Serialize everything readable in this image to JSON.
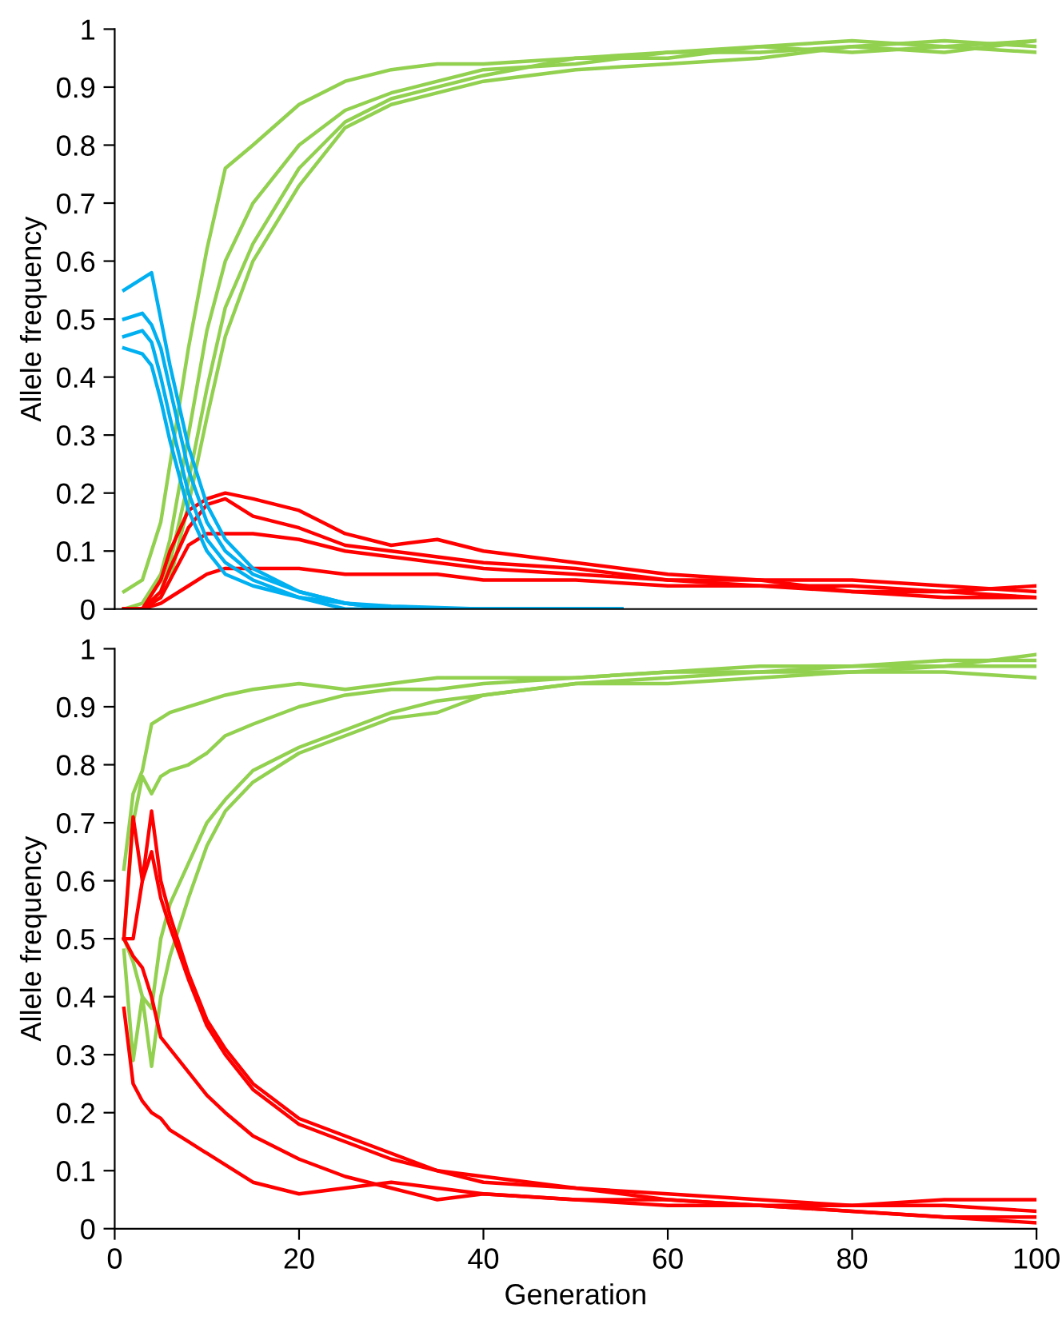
{
  "chart_data": [
    {
      "type": "line",
      "ylabel": "Allele frequency",
      "xlim": [
        0,
        100
      ],
      "ylim": [
        0,
        1
      ],
      "yticks": [
        0,
        0.1,
        0.2,
        0.3,
        0.4,
        0.5,
        0.6,
        0.7,
        0.8,
        0.9,
        1
      ],
      "tick_labels": "y",
      "grid": false,
      "marker": "none",
      "line_style": "solid",
      "x": [
        1,
        3,
        5,
        6,
        8,
        10,
        12,
        15,
        20,
        25,
        30,
        35,
        40,
        50,
        60,
        70,
        80,
        90,
        100
      ],
      "series": [
        {
          "color": "#92d050",
          "values": [
            0.03,
            0.05,
            0.15,
            0.25,
            0.45,
            0.62,
            0.76,
            0.8,
            0.87,
            0.91,
            0.93,
            0.94,
            0.94,
            0.95,
            0.96,
            0.97,
            0.98,
            0.97,
            0.98
          ]
        },
        {
          "color": "#92d050",
          "values": [
            0.0,
            0.01,
            0.06,
            0.12,
            0.3,
            0.48,
            0.6,
            0.7,
            0.8,
            0.86,
            0.89,
            0.91,
            0.93,
            0.94,
            0.96,
            0.96,
            0.97,
            0.98,
            0.97
          ]
        },
        {
          "color": "#92d050",
          "values": [
            0.0,
            0.0,
            0.03,
            0.08,
            0.22,
            0.38,
            0.52,
            0.63,
            0.76,
            0.84,
            0.88,
            0.9,
            0.92,
            0.95,
            0.95,
            0.97,
            0.96,
            0.97,
            0.96
          ]
        },
        {
          "color": "#92d050",
          "values": [
            0.0,
            0.0,
            0.02,
            0.05,
            0.18,
            0.33,
            0.47,
            0.6,
            0.73,
            0.83,
            0.87,
            0.89,
            0.91,
            0.93,
            0.94,
            0.95,
            0.97,
            0.96,
            0.98
          ]
        },
        {
          "color": "#ff0000",
          "values": [
            0.0,
            0.0,
            0.05,
            0.1,
            0.17,
            0.19,
            0.2,
            0.19,
            0.17,
            0.13,
            0.11,
            0.12,
            0.1,
            0.08,
            0.06,
            0.05,
            0.05,
            0.04,
            0.03
          ]
        },
        {
          "color": "#ff0000",
          "values": [
            0.0,
            0.0,
            0.03,
            0.07,
            0.14,
            0.18,
            0.19,
            0.16,
            0.14,
            0.11,
            0.1,
            0.09,
            0.08,
            0.07,
            0.05,
            0.04,
            0.04,
            0.03,
            0.02
          ]
        },
        {
          "color": "#ff0000",
          "values": [
            0.0,
            0.0,
            0.02,
            0.05,
            0.11,
            0.13,
            0.13,
            0.13,
            0.12,
            0.1,
            0.09,
            0.08,
            0.07,
            0.06,
            0.05,
            0.05,
            0.03,
            0.03,
            0.04
          ]
        },
        {
          "color": "#ff0000",
          "values": [
            0.0,
            0.0,
            0.01,
            0.02,
            0.04,
            0.06,
            0.07,
            0.07,
            0.07,
            0.06,
            0.06,
            0.06,
            0.05,
            0.05,
            0.04,
            0.04,
            0.03,
            0.02,
            0.02
          ]
        },
        {
          "color": "#00b0f0",
          "x": [
            1,
            3,
            4,
            5,
            6,
            8,
            10,
            12,
            15,
            20,
            25,
            30,
            40,
            55
          ],
          "values": [
            0.55,
            0.57,
            0.58,
            0.5,
            0.42,
            0.28,
            0.18,
            0.12,
            0.07,
            0.03,
            0.01,
            0.005,
            0.0,
            0.0
          ]
        },
        {
          "color": "#00b0f0",
          "x": [
            1,
            3,
            4,
            5,
            6,
            8,
            10,
            12,
            15,
            20,
            25,
            30,
            40,
            55
          ],
          "values": [
            0.5,
            0.51,
            0.49,
            0.45,
            0.38,
            0.24,
            0.15,
            0.1,
            0.06,
            0.03,
            0.01,
            0.0,
            0.0,
            0.0
          ]
        },
        {
          "color": "#00b0f0",
          "x": [
            1,
            3,
            4,
            5,
            6,
            8,
            10,
            12,
            15,
            20,
            25,
            30,
            40,
            55
          ],
          "values": [
            0.47,
            0.48,
            0.46,
            0.4,
            0.33,
            0.2,
            0.12,
            0.08,
            0.05,
            0.02,
            0.01,
            0.0,
            0.0,
            0.0
          ]
        },
        {
          "color": "#00b0f0",
          "x": [
            1,
            3,
            4,
            5,
            6,
            8,
            10,
            12,
            15,
            20,
            25,
            30,
            40,
            55
          ],
          "values": [
            0.45,
            0.44,
            0.42,
            0.36,
            0.29,
            0.17,
            0.1,
            0.06,
            0.04,
            0.02,
            0.0,
            0.0,
            0.0,
            0.0
          ]
        }
      ]
    },
    {
      "type": "line",
      "xlabel": "Generation",
      "ylabel": "Allele frequency",
      "xlim": [
        0,
        100
      ],
      "ylim": [
        0,
        1
      ],
      "xticks": [
        0,
        20,
        40,
        60,
        80,
        100
      ],
      "yticks": [
        0,
        0.1,
        0.2,
        0.3,
        0.4,
        0.5,
        0.6,
        0.7,
        0.8,
        0.9,
        1
      ],
      "grid": false,
      "marker": "none",
      "line_style": "solid",
      "x": [
        1,
        2,
        3,
        4,
        5,
        6,
        8,
        10,
        12,
        15,
        20,
        25,
        30,
        35,
        40,
        50,
        60,
        70,
        80,
        90,
        100
      ],
      "series": [
        {
          "color": "#92d050",
          "values": [
            0.62,
            0.75,
            0.79,
            0.87,
            0.88,
            0.89,
            0.9,
            0.91,
            0.92,
            0.93,
            0.94,
            0.93,
            0.94,
            0.95,
            0.95,
            0.95,
            0.96,
            0.97,
            0.97,
            0.98,
            0.98
          ]
        },
        {
          "color": "#92d050",
          "values": [
            0.5,
            0.7,
            0.78,
            0.75,
            0.78,
            0.79,
            0.8,
            0.82,
            0.85,
            0.87,
            0.9,
            0.92,
            0.93,
            0.93,
            0.94,
            0.95,
            0.96,
            0.96,
            0.97,
            0.97,
            0.99
          ]
        },
        {
          "color": "#92d050",
          "values": [
            0.5,
            0.46,
            0.4,
            0.38,
            0.5,
            0.56,
            0.63,
            0.7,
            0.74,
            0.79,
            0.83,
            0.86,
            0.89,
            0.91,
            0.92,
            0.94,
            0.95,
            0.96,
            0.96,
            0.97,
            0.97
          ]
        },
        {
          "color": "#92d050",
          "values": [
            0.48,
            0.29,
            0.4,
            0.28,
            0.4,
            0.47,
            0.57,
            0.66,
            0.72,
            0.77,
            0.82,
            0.85,
            0.88,
            0.89,
            0.92,
            0.94,
            0.94,
            0.95,
            0.96,
            0.96,
            0.95
          ]
        },
        {
          "color": "#ff0000",
          "values": [
            0.5,
            0.71,
            0.6,
            0.65,
            0.57,
            0.52,
            0.43,
            0.35,
            0.3,
            0.24,
            0.18,
            0.15,
            0.12,
            0.1,
            0.09,
            0.07,
            0.06,
            0.05,
            0.04,
            0.04,
            0.03
          ]
        },
        {
          "color": "#ff0000",
          "values": [
            0.5,
            0.5,
            0.6,
            0.72,
            0.6,
            0.54,
            0.44,
            0.36,
            0.31,
            0.25,
            0.19,
            0.16,
            0.13,
            0.1,
            0.08,
            0.07,
            0.05,
            0.04,
            0.04,
            0.05,
            0.05
          ]
        },
        {
          "color": "#ff0000",
          "values": [
            0.5,
            0.47,
            0.45,
            0.4,
            0.33,
            0.31,
            0.27,
            0.23,
            0.2,
            0.16,
            0.12,
            0.09,
            0.07,
            0.05,
            0.06,
            0.05,
            0.05,
            0.04,
            0.03,
            0.02,
            0.02
          ]
        },
        {
          "color": "#ff0000",
          "values": [
            0.38,
            0.25,
            0.22,
            0.2,
            0.19,
            0.17,
            0.15,
            0.13,
            0.11,
            0.08,
            0.06,
            0.07,
            0.08,
            0.07,
            0.06,
            0.05,
            0.04,
            0.04,
            0.03,
            0.02,
            0.01
          ]
        }
      ]
    }
  ]
}
